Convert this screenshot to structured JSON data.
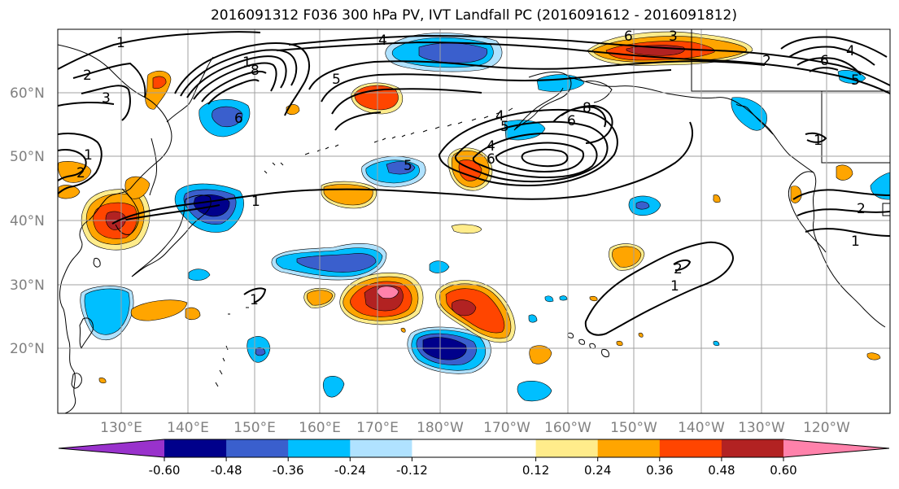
{
  "title": "2016091312 F036 300 hPa PV, IVT Landfall PC (2016091612 - 2016091812)",
  "lat_labels": [
    "60°N",
    "50°N",
    "40°N",
    "30°N",
    "20°N"
  ],
  "lon_labels": [
    "130°E",
    "140°E",
    "150°E",
    "160°E",
    "170°E",
    "180°W",
    "170°W",
    "160°W",
    "150°W",
    "140°W",
    "130°W",
    "120°W"
  ],
  "colorbar": {
    "colors": [
      "#9932cc",
      "#00008b",
      "#3a5fcd",
      "#00bfff",
      "#b0e2ff",
      "#ffffff",
      "#ffffff",
      "#ffec8b",
      "#ffa500",
      "#ff4500",
      "#b22222",
      "#ff82ab"
    ],
    "tick_labels": [
      "-0.60",
      "-0.48",
      "-0.36",
      "-0.24",
      "-0.12",
      "0.12",
      "0.24",
      "0.36",
      "0.48",
      "0.60"
    ]
  },
  "contour_labels": [
    "1",
    "2",
    "3",
    "4",
    "5",
    "6",
    "8",
    "1",
    "4",
    "5",
    "6",
    "5",
    "6",
    "4",
    "6",
    "8",
    "1",
    "2",
    "1",
    "1",
    "2",
    "1",
    "2",
    "1",
    "6",
    "5",
    "4",
    "2",
    "1",
    "3"
  ]
}
